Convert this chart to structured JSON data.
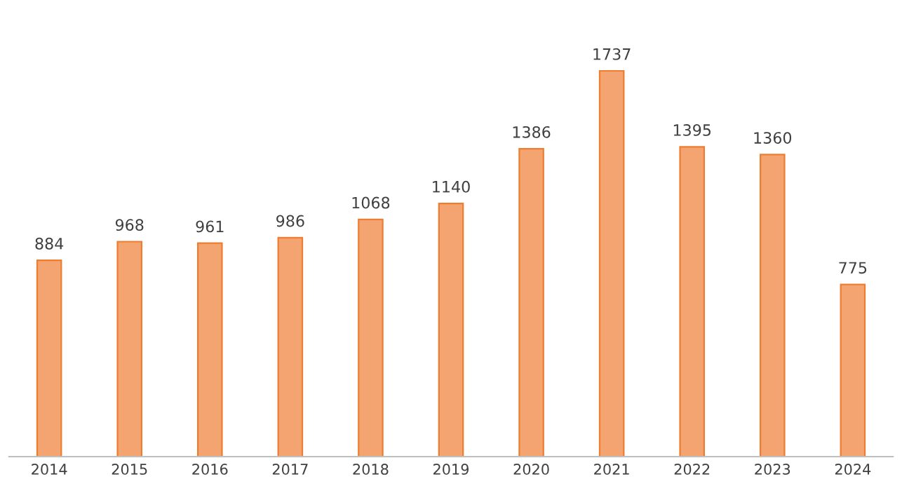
{
  "chart_data": {
    "type": "bar",
    "categories": [
      "2014",
      "2015",
      "2016",
      "2017",
      "2018",
      "2019",
      "2020",
      "2021",
      "2022",
      "2023",
      "2024"
    ],
    "values": [
      884,
      968,
      961,
      986,
      1068,
      1140,
      1386,
      1737,
      1395,
      1360,
      775
    ],
    "color": "#f4a470",
    "data_labels": true
  }
}
